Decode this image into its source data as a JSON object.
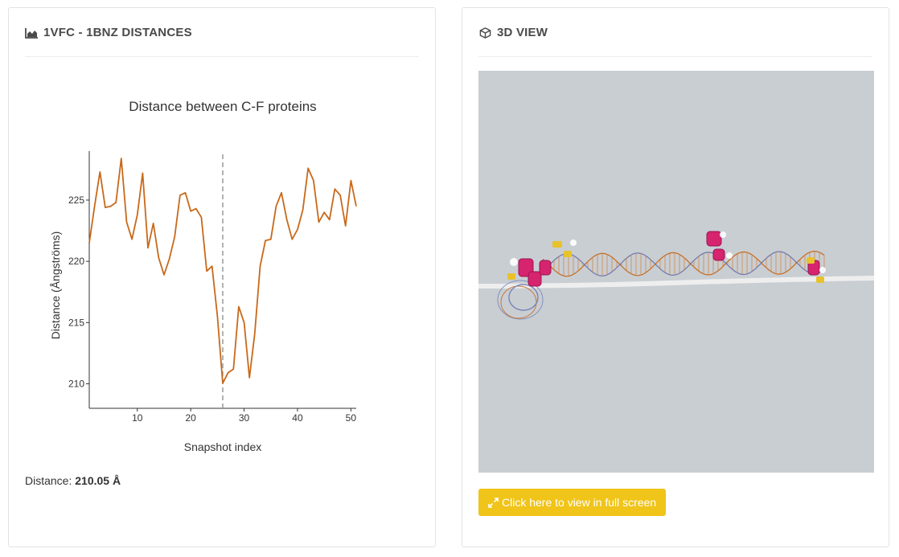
{
  "left_panel": {
    "title": "1VFC - 1BNZ DISTANCES",
    "icon": "area-chart-icon",
    "distance_label": "Distance:",
    "distance_value": "210.05 Å"
  },
  "right_panel": {
    "title": "3D VIEW",
    "icon": "cube-icon",
    "fullscreen_label": "Click here to view in full screen",
    "fullscreen_icon": "expand-icon",
    "button_color": "#f0c419",
    "viewer_bg": "#c9ced3"
  },
  "chart_data": {
    "type": "line",
    "title": "Distance between C-F proteins",
    "xlabel": "Snapshot index",
    "ylabel": "Distance (Ångströms)",
    "xlim": [
      1,
      51
    ],
    "ylim": [
      208,
      229
    ],
    "xticks": [
      10,
      20,
      30,
      40,
      50
    ],
    "yticks": [
      210,
      215,
      220,
      225
    ],
    "line_color": "#c8691a",
    "marker_x": 26,
    "marker_style": "dashed",
    "x": [
      1,
      2,
      3,
      4,
      5,
      6,
      7,
      8,
      9,
      10,
      11,
      12,
      13,
      14,
      15,
      16,
      17,
      18,
      19,
      20,
      21,
      22,
      23,
      24,
      25,
      26,
      27,
      28,
      29,
      30,
      31,
      32,
      33,
      34,
      35,
      36,
      37,
      38,
      39,
      40,
      41,
      42,
      43,
      44,
      45,
      46,
      47,
      48,
      49,
      50,
      51
    ],
    "values": [
      221.5,
      224.5,
      227.3,
      224.4,
      224.5,
      224.8,
      228.4,
      223.2,
      221.8,
      223.8,
      227.2,
      221.1,
      223.1,
      220.3,
      218.9,
      220.2,
      222.0,
      225.4,
      225.6,
      224.1,
      224.3,
      223.6,
      219.2,
      219.6,
      215.5,
      210.05,
      210.9,
      211.2,
      216.3,
      215.0,
      210.5,
      214.1,
      219.6,
      221.7,
      221.8,
      224.5,
      225.6,
      223.4,
      221.8,
      222.6,
      224.2,
      227.6,
      226.6,
      223.2,
      224.0,
      223.4,
      225.9,
      225.4,
      222.9,
      226.6,
      224.5
    ]
  }
}
